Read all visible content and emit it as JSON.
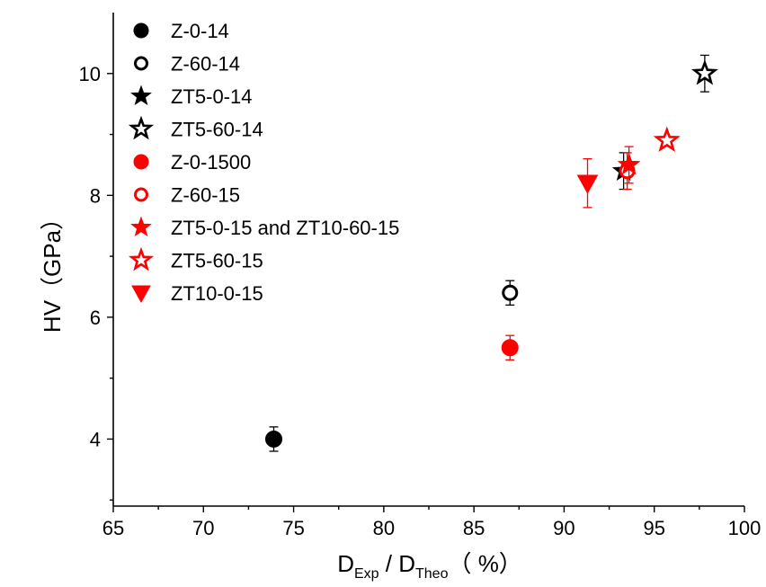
{
  "chart_data": {
    "type": "scatter",
    "xlim": [
      65,
      100
    ],
    "ylim": [
      2.9,
      11
    ],
    "x_ticks": [
      65,
      70,
      75,
      80,
      85,
      90,
      95,
      100
    ],
    "y_ticks": [
      4,
      6,
      8,
      10
    ],
    "xlabel": {
      "main": "D",
      "sub1": "Exp",
      "mid": " / D",
      "sub2": "Theo",
      "unit": "（ %）"
    },
    "ylabel": "HV（GPa）",
    "legend_position": "top-left",
    "colors": {
      "black": "#000000",
      "red": "#ff0000"
    },
    "series": [
      {
        "name": "Z-0-14",
        "marker": "circle",
        "filled": true,
        "color": "#000000",
        "points": [
          {
            "x": 73.9,
            "y": 4.0,
            "err": 0.2
          }
        ]
      },
      {
        "name": "Z-60-14",
        "marker": "circle",
        "filled": false,
        "color": "#000000",
        "points": [
          {
            "x": 87.0,
            "y": 6.4,
            "err": 0.2
          }
        ]
      },
      {
        "name": "ZT5-0-14",
        "marker": "star",
        "filled": true,
        "color": "#000000",
        "points": [
          {
            "x": 93.3,
            "y": 8.4,
            "err": 0.3
          }
        ]
      },
      {
        "name": "ZT5-60-14",
        "marker": "star",
        "filled": false,
        "color": "#000000",
        "points": [
          {
            "x": 97.8,
            "y": 10.0,
            "err": 0.3
          }
        ]
      },
      {
        "name": "Z-0-1500",
        "marker": "circle",
        "filled": true,
        "color": "#ff0000",
        "points": [
          {
            "x": 87.0,
            "y": 5.5,
            "err": 0.2
          }
        ]
      },
      {
        "name": "Z-60-15",
        "marker": "circle",
        "filled": false,
        "color": "#ff0000",
        "points": [
          {
            "x": 93.5,
            "y": 8.4,
            "err": 0.3
          }
        ]
      },
      {
        "name": "ZT5-0-15 and ZT10-60-15",
        "marker": "star",
        "filled": true,
        "color": "#ff0000",
        "points": [
          {
            "x": 93.6,
            "y": 8.5,
            "err": 0.3
          }
        ]
      },
      {
        "name": "ZT5-60-15",
        "marker": "star",
        "filled": false,
        "color": "#ff0000",
        "points": [
          {
            "x": 95.7,
            "y": 8.9,
            "err": 0.0
          }
        ]
      },
      {
        "name": "ZT10-0-15",
        "marker": "triangle-down",
        "filled": true,
        "color": "#ff0000",
        "points": [
          {
            "x": 91.3,
            "y": 8.2,
            "err": 0.4
          }
        ]
      }
    ]
  }
}
